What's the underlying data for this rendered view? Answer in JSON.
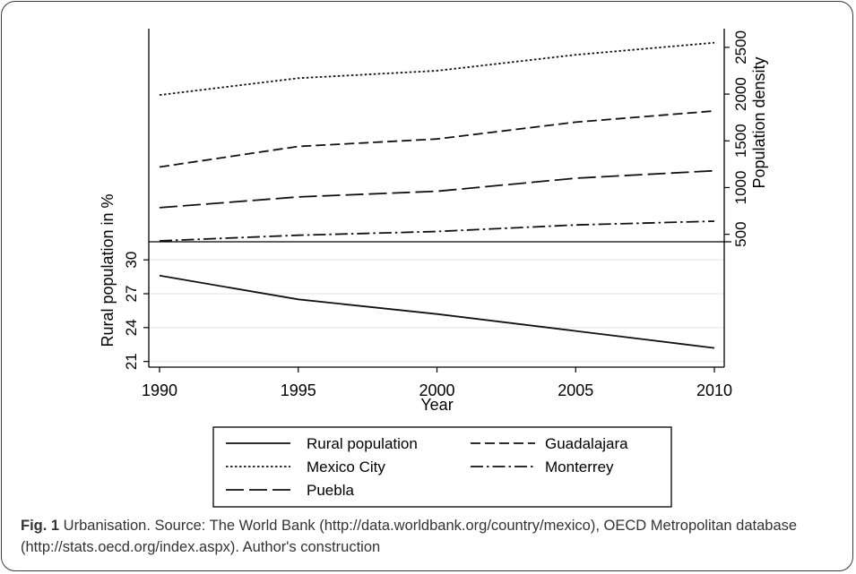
{
  "chart_data": {
    "type": "line",
    "x": [
      1990,
      1995,
      2000,
      2005,
      2010
    ],
    "xlabel": "Year",
    "xlim": [
      1990,
      2010
    ],
    "xticks": [
      "1990",
      "1995",
      "2000",
      "2005",
      "2010"
    ],
    "panels": [
      {
        "ylabel": "Population density",
        "axis_side": "right",
        "ylim": [
          420,
          2700
        ],
        "yticks": [
          "500",
          "1000",
          "1500",
          "2000",
          "2500"
        ],
        "series": [
          {
            "name": "Mexico City",
            "style": "dotted",
            "values": [
              1990,
              2170,
              2250,
              2420,
              2550
            ]
          },
          {
            "name": "Guadalajara",
            "style": "dashed",
            "values": [
              1220,
              1440,
              1520,
              1700,
              1820
            ]
          },
          {
            "name": "Puebla",
            "style": "longdash",
            "values": [
              785,
              900,
              960,
              1100,
              1180
            ]
          },
          {
            "name": "Monterrey",
            "style": "dashdot",
            "values": [
              430,
              490,
              530,
              600,
              640
            ]
          }
        ]
      },
      {
        "ylabel": "Rural population in %",
        "axis_side": "left",
        "ylim": [
          20.5,
          31.6
        ],
        "yticks": [
          "21",
          "24",
          "27",
          "30"
        ],
        "grid": true,
        "series": [
          {
            "name": "Rural population",
            "style": "solid",
            "values": [
              28.6,
              26.5,
              25.2,
              23.7,
              22.2
            ]
          }
        ]
      }
    ],
    "legend": {
      "position": "bottom",
      "entries": [
        {
          "label": "Rural population",
          "style": "solid"
        },
        {
          "label": "Guadalajara",
          "style": "dashed"
        },
        {
          "label": "Mexico City",
          "style": "dotted"
        },
        {
          "label": "Monterrey",
          "style": "dashdot"
        },
        {
          "label": "Puebla",
          "style": "longdash"
        }
      ]
    }
  },
  "caption": {
    "label": "Fig. 1",
    "text": " Urbanisation. Source: The World Bank (http://data.worldbank.org/country/mexico), OECD Metropolitan database (http://stats.oecd.org/index.aspx). Author's construction"
  }
}
